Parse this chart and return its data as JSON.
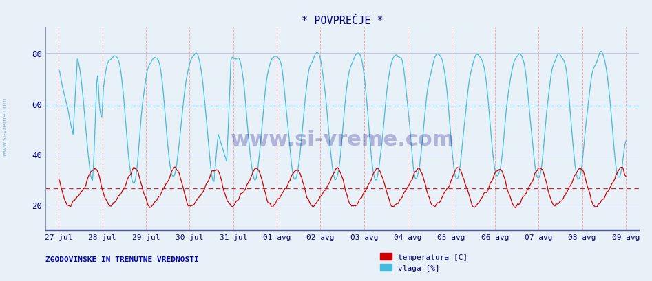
{
  "title": "* POVPREČJE *",
  "title_color": "#000080",
  "background_color": "#e8f0f8",
  "plot_bg_color": "#e8f0f8",
  "ylim": [
    10,
    90
  ],
  "yticks": [
    20,
    40,
    60,
    80
  ],
  "x_labels": [
    "27 jul",
    "28 jul",
    "29 jul",
    "30 jul",
    "31 jul",
    "01 avg",
    "02 avg",
    "03 avg",
    "04 avg",
    "05 avg",
    "06 avg",
    "07 avg",
    "08 avg",
    "09 avg"
  ],
  "temp_color": "#cc0000",
  "vlaga_color": "#44bbdd",
  "temp_avg_line": 26.5,
  "vlaga_avg_line": 59.0,
  "grid_color": "#bbbbdd",
  "vline_color": "#ff9999",
  "footer_text": "ZGODOVINSKE IN TRENUTNE VREDNOSTI",
  "footer_color": "#0000cc",
  "legend_temp": "temperatura [C]",
  "legend_vlaga": "vlaga [%]",
  "watermark_text": "www.si-vreme.com",
  "watermark_color": "#000080",
  "watermark_alpha": 0.25,
  "n_points": 673,
  "sidebar_text": "www.si-vreme.com",
  "sidebar_color": "#7799bb"
}
